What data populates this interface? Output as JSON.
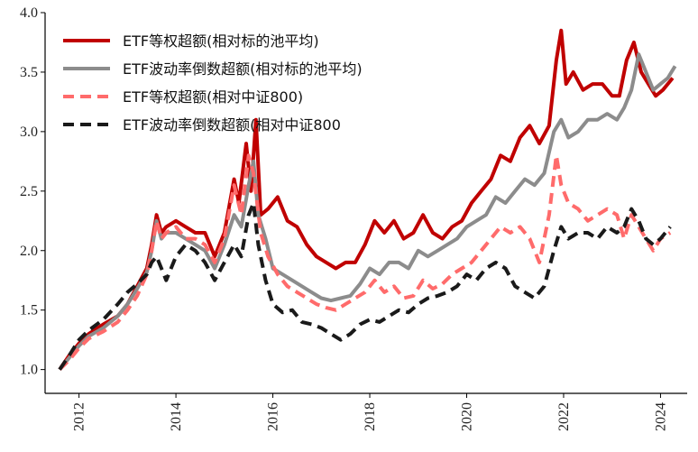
{
  "chart_data": {
    "type": "line",
    "title": "",
    "xlabel": "",
    "ylabel": "",
    "xlim": [
      2011.3,
      2024.55
    ],
    "ylim": [
      0.8,
      4.0
    ],
    "xticks": [
      2012,
      2014,
      2016,
      2018,
      2020,
      2022,
      2024
    ],
    "xtick_labels": [
      "2012",
      "2014",
      "2016",
      "2018",
      "2020",
      "2022",
      "2024"
    ],
    "yticks": [
      1.0,
      1.5,
      2.0,
      2.5,
      3.0,
      3.5,
      4.0
    ],
    "ytick_labels": [
      "1.0",
      "1.5",
      "2.0",
      "2.5",
      "3.0",
      "3.5",
      "4.0"
    ],
    "grid": false,
    "legend_position": "top-left",
    "series": [
      {
        "name": "ETF等权超额(相对标的池平均)",
        "color": "#c00000",
        "dash": "solid",
        "points": [
          [
            2011.6,
            1.0
          ],
          [
            2011.8,
            1.12
          ],
          [
            2012.0,
            1.22
          ],
          [
            2012.2,
            1.3
          ],
          [
            2012.5,
            1.38
          ],
          [
            2012.8,
            1.45
          ],
          [
            2013.0,
            1.55
          ],
          [
            2013.2,
            1.7
          ],
          [
            2013.4,
            1.85
          ],
          [
            2013.5,
            2.05
          ],
          [
            2013.6,
            2.3
          ],
          [
            2013.7,
            2.15
          ],
          [
            2013.8,
            2.2
          ],
          [
            2014.0,
            2.25
          ],
          [
            2014.2,
            2.2
          ],
          [
            2014.4,
            2.15
          ],
          [
            2014.6,
            2.15
          ],
          [
            2014.8,
            1.95
          ],
          [
            2015.0,
            2.15
          ],
          [
            2015.2,
            2.6
          ],
          [
            2015.3,
            2.4
          ],
          [
            2015.45,
            2.9
          ],
          [
            2015.55,
            2.5
          ],
          [
            2015.65,
            3.1
          ],
          [
            2015.75,
            2.3
          ],
          [
            2015.9,
            2.35
          ],
          [
            2016.1,
            2.45
          ],
          [
            2016.3,
            2.25
          ],
          [
            2016.5,
            2.2
          ],
          [
            2016.7,
            2.05
          ],
          [
            2016.9,
            1.95
          ],
          [
            2017.1,
            1.9
          ],
          [
            2017.3,
            1.85
          ],
          [
            2017.5,
            1.9
          ],
          [
            2017.7,
            1.9
          ],
          [
            2017.9,
            2.05
          ],
          [
            2018.1,
            2.25
          ],
          [
            2018.3,
            2.15
          ],
          [
            2018.5,
            2.25
          ],
          [
            2018.7,
            2.1
          ],
          [
            2018.9,
            2.15
          ],
          [
            2019.1,
            2.3
          ],
          [
            2019.3,
            2.15
          ],
          [
            2019.5,
            2.1
          ],
          [
            2019.7,
            2.2
          ],
          [
            2019.9,
            2.25
          ],
          [
            2020.1,
            2.4
          ],
          [
            2020.3,
            2.5
          ],
          [
            2020.5,
            2.6
          ],
          [
            2020.7,
            2.8
          ],
          [
            2020.9,
            2.75
          ],
          [
            2021.1,
            2.95
          ],
          [
            2021.3,
            3.05
          ],
          [
            2021.5,
            2.9
          ],
          [
            2021.7,
            3.05
          ],
          [
            2021.85,
            3.6
          ],
          [
            2021.95,
            3.85
          ],
          [
            2022.05,
            3.4
          ],
          [
            2022.2,
            3.5
          ],
          [
            2022.4,
            3.35
          ],
          [
            2022.6,
            3.4
          ],
          [
            2022.8,
            3.4
          ],
          [
            2023.0,
            3.3
          ],
          [
            2023.15,
            3.3
          ],
          [
            2023.3,
            3.6
          ],
          [
            2023.45,
            3.75
          ],
          [
            2023.6,
            3.5
          ],
          [
            2023.75,
            3.4
          ],
          [
            2023.9,
            3.3
          ],
          [
            2024.05,
            3.35
          ],
          [
            2024.25,
            3.45
          ]
        ]
      },
      {
        "name": "ETF波动率倒数超额(相对标的池平均)",
        "color": "#8c8c8c",
        "dash": "solid",
        "points": [
          [
            2011.6,
            1.0
          ],
          [
            2011.8,
            1.1
          ],
          [
            2012.0,
            1.2
          ],
          [
            2012.2,
            1.28
          ],
          [
            2012.5,
            1.35
          ],
          [
            2012.8,
            1.45
          ],
          [
            2013.0,
            1.55
          ],
          [
            2013.2,
            1.68
          ],
          [
            2013.4,
            1.82
          ],
          [
            2013.5,
            2.0
          ],
          [
            2013.6,
            2.25
          ],
          [
            2013.7,
            2.1
          ],
          [
            2013.8,
            2.15
          ],
          [
            2014.0,
            2.15
          ],
          [
            2014.2,
            2.1
          ],
          [
            2014.4,
            2.05
          ],
          [
            2014.6,
            2.0
          ],
          [
            2014.8,
            1.85
          ],
          [
            2015.0,
            2.05
          ],
          [
            2015.2,
            2.3
          ],
          [
            2015.35,
            2.2
          ],
          [
            2015.5,
            2.55
          ],
          [
            2015.6,
            2.75
          ],
          [
            2015.7,
            2.3
          ],
          [
            2015.85,
            2.1
          ],
          [
            2016.0,
            1.85
          ],
          [
            2016.2,
            1.8
          ],
          [
            2016.4,
            1.75
          ],
          [
            2016.6,
            1.7
          ],
          [
            2016.8,
            1.65
          ],
          [
            2017.0,
            1.6
          ],
          [
            2017.2,
            1.58
          ],
          [
            2017.4,
            1.6
          ],
          [
            2017.6,
            1.62
          ],
          [
            2017.8,
            1.72
          ],
          [
            2018.0,
            1.85
          ],
          [
            2018.2,
            1.8
          ],
          [
            2018.4,
            1.9
          ],
          [
            2018.6,
            1.9
          ],
          [
            2018.8,
            1.85
          ],
          [
            2019.0,
            2.0
          ],
          [
            2019.2,
            1.95
          ],
          [
            2019.4,
            2.0
          ],
          [
            2019.6,
            2.05
          ],
          [
            2019.8,
            2.1
          ],
          [
            2020.0,
            2.2
          ],
          [
            2020.2,
            2.25
          ],
          [
            2020.4,
            2.3
          ],
          [
            2020.6,
            2.45
          ],
          [
            2020.8,
            2.4
          ],
          [
            2021.0,
            2.5
          ],
          [
            2021.2,
            2.6
          ],
          [
            2021.4,
            2.55
          ],
          [
            2021.6,
            2.65
          ],
          [
            2021.8,
            3.0
          ],
          [
            2021.95,
            3.1
          ],
          [
            2022.1,
            2.95
          ],
          [
            2022.3,
            3.0
          ],
          [
            2022.5,
            3.1
          ],
          [
            2022.7,
            3.1
          ],
          [
            2022.9,
            3.15
          ],
          [
            2023.1,
            3.1
          ],
          [
            2023.25,
            3.2
          ],
          [
            2023.4,
            3.35
          ],
          [
            2023.55,
            3.65
          ],
          [
            2023.7,
            3.5
          ],
          [
            2023.85,
            3.35
          ],
          [
            2024.0,
            3.4
          ],
          [
            2024.15,
            3.45
          ],
          [
            2024.3,
            3.55
          ]
        ]
      },
      {
        "name": "ETF等权超额(相对中证800)",
        "color": "#ff6b6b",
        "dash": "dashed",
        "points": [
          [
            2011.6,
            1.0
          ],
          [
            2011.8,
            1.08
          ],
          [
            2012.0,
            1.18
          ],
          [
            2012.2,
            1.26
          ],
          [
            2012.5,
            1.32
          ],
          [
            2012.8,
            1.4
          ],
          [
            2013.0,
            1.5
          ],
          [
            2013.2,
            1.62
          ],
          [
            2013.4,
            1.8
          ],
          [
            2013.5,
            2.0
          ],
          [
            2013.6,
            2.25
          ],
          [
            2013.7,
            2.1
          ],
          [
            2013.8,
            2.15
          ],
          [
            2014.0,
            2.2
          ],
          [
            2014.2,
            2.1
          ],
          [
            2014.4,
            2.1
          ],
          [
            2014.6,
            2.05
          ],
          [
            2014.8,
            1.9
          ],
          [
            2015.0,
            2.1
          ],
          [
            2015.2,
            2.55
          ],
          [
            2015.35,
            2.3
          ],
          [
            2015.5,
            2.8
          ],
          [
            2015.6,
            2.65
          ],
          [
            2015.75,
            2.15
          ],
          [
            2015.9,
            1.95
          ],
          [
            2016.1,
            1.8
          ],
          [
            2016.3,
            1.7
          ],
          [
            2016.5,
            1.65
          ],
          [
            2016.7,
            1.6
          ],
          [
            2016.9,
            1.55
          ],
          [
            2017.1,
            1.52
          ],
          [
            2017.3,
            1.5
          ],
          [
            2017.5,
            1.55
          ],
          [
            2017.7,
            1.6
          ],
          [
            2017.9,
            1.65
          ],
          [
            2018.1,
            1.75
          ],
          [
            2018.3,
            1.65
          ],
          [
            2018.5,
            1.7
          ],
          [
            2018.7,
            1.6
          ],
          [
            2018.9,
            1.62
          ],
          [
            2019.1,
            1.75
          ],
          [
            2019.3,
            1.68
          ],
          [
            2019.5,
            1.72
          ],
          [
            2019.7,
            1.8
          ],
          [
            2019.9,
            1.85
          ],
          [
            2020.1,
            1.9
          ],
          [
            2020.3,
            2.0
          ],
          [
            2020.5,
            2.1
          ],
          [
            2020.7,
            2.2
          ],
          [
            2020.9,
            2.15
          ],
          [
            2021.1,
            2.2
          ],
          [
            2021.3,
            2.1
          ],
          [
            2021.5,
            1.9
          ],
          [
            2021.7,
            2.3
          ],
          [
            2021.85,
            2.8
          ],
          [
            2021.95,
            2.55
          ],
          [
            2022.1,
            2.4
          ],
          [
            2022.3,
            2.35
          ],
          [
            2022.5,
            2.25
          ],
          [
            2022.7,
            2.3
          ],
          [
            2022.9,
            2.35
          ],
          [
            2023.1,
            2.3
          ],
          [
            2023.25,
            2.1
          ],
          [
            2023.4,
            2.3
          ],
          [
            2023.55,
            2.2
          ],
          [
            2023.7,
            2.1
          ],
          [
            2023.85,
            2.0
          ],
          [
            2024.0,
            2.1
          ],
          [
            2024.2,
            2.15
          ]
        ]
      },
      {
        "name": "ETF波动率倒数超额(相对中证800",
        "color": "#1a1a1a",
        "dash": "dashed",
        "points": [
          [
            2011.6,
            1.0
          ],
          [
            2011.8,
            1.12
          ],
          [
            2012.0,
            1.25
          ],
          [
            2012.2,
            1.33
          ],
          [
            2012.5,
            1.42
          ],
          [
            2012.8,
            1.55
          ],
          [
            2013.0,
            1.65
          ],
          [
            2013.2,
            1.72
          ],
          [
            2013.4,
            1.8
          ],
          [
            2013.5,
            1.9
          ],
          [
            2013.6,
            1.95
          ],
          [
            2013.7,
            1.85
          ],
          [
            2013.8,
            1.75
          ],
          [
            2014.0,
            1.95
          ],
          [
            2014.2,
            2.05
          ],
          [
            2014.4,
            2.0
          ],
          [
            2014.6,
            1.9
          ],
          [
            2014.8,
            1.75
          ],
          [
            2015.0,
            1.9
          ],
          [
            2015.2,
            2.05
          ],
          [
            2015.35,
            1.95
          ],
          [
            2015.5,
            2.3
          ],
          [
            2015.6,
            2.4
          ],
          [
            2015.7,
            2.05
          ],
          [
            2015.85,
            1.75
          ],
          [
            2016.0,
            1.55
          ],
          [
            2016.2,
            1.48
          ],
          [
            2016.4,
            1.5
          ],
          [
            2016.6,
            1.4
          ],
          [
            2016.8,
            1.38
          ],
          [
            2017.0,
            1.35
          ],
          [
            2017.2,
            1.3
          ],
          [
            2017.4,
            1.25
          ],
          [
            2017.6,
            1.3
          ],
          [
            2017.8,
            1.38
          ],
          [
            2018.0,
            1.42
          ],
          [
            2018.2,
            1.4
          ],
          [
            2018.4,
            1.45
          ],
          [
            2018.6,
            1.5
          ],
          [
            2018.8,
            1.48
          ],
          [
            2019.0,
            1.55
          ],
          [
            2019.2,
            1.6
          ],
          [
            2019.4,
            1.62
          ],
          [
            2019.6,
            1.65
          ],
          [
            2019.8,
            1.7
          ],
          [
            2020.0,
            1.8
          ],
          [
            2020.2,
            1.75
          ],
          [
            2020.4,
            1.85
          ],
          [
            2020.6,
            1.9
          ],
          [
            2020.8,
            1.85
          ],
          [
            2021.0,
            1.7
          ],
          [
            2021.2,
            1.65
          ],
          [
            2021.4,
            1.6
          ],
          [
            2021.6,
            1.7
          ],
          [
            2021.8,
            2.0
          ],
          [
            2021.95,
            2.2
          ],
          [
            2022.1,
            2.1
          ],
          [
            2022.3,
            2.15
          ],
          [
            2022.5,
            2.15
          ],
          [
            2022.7,
            2.1
          ],
          [
            2022.9,
            2.2
          ],
          [
            2023.1,
            2.15
          ],
          [
            2023.25,
            2.2
          ],
          [
            2023.4,
            2.35
          ],
          [
            2023.55,
            2.25
          ],
          [
            2023.7,
            2.1
          ],
          [
            2023.85,
            2.05
          ],
          [
            2024.0,
            2.1
          ],
          [
            2024.2,
            2.2
          ]
        ]
      }
    ]
  }
}
